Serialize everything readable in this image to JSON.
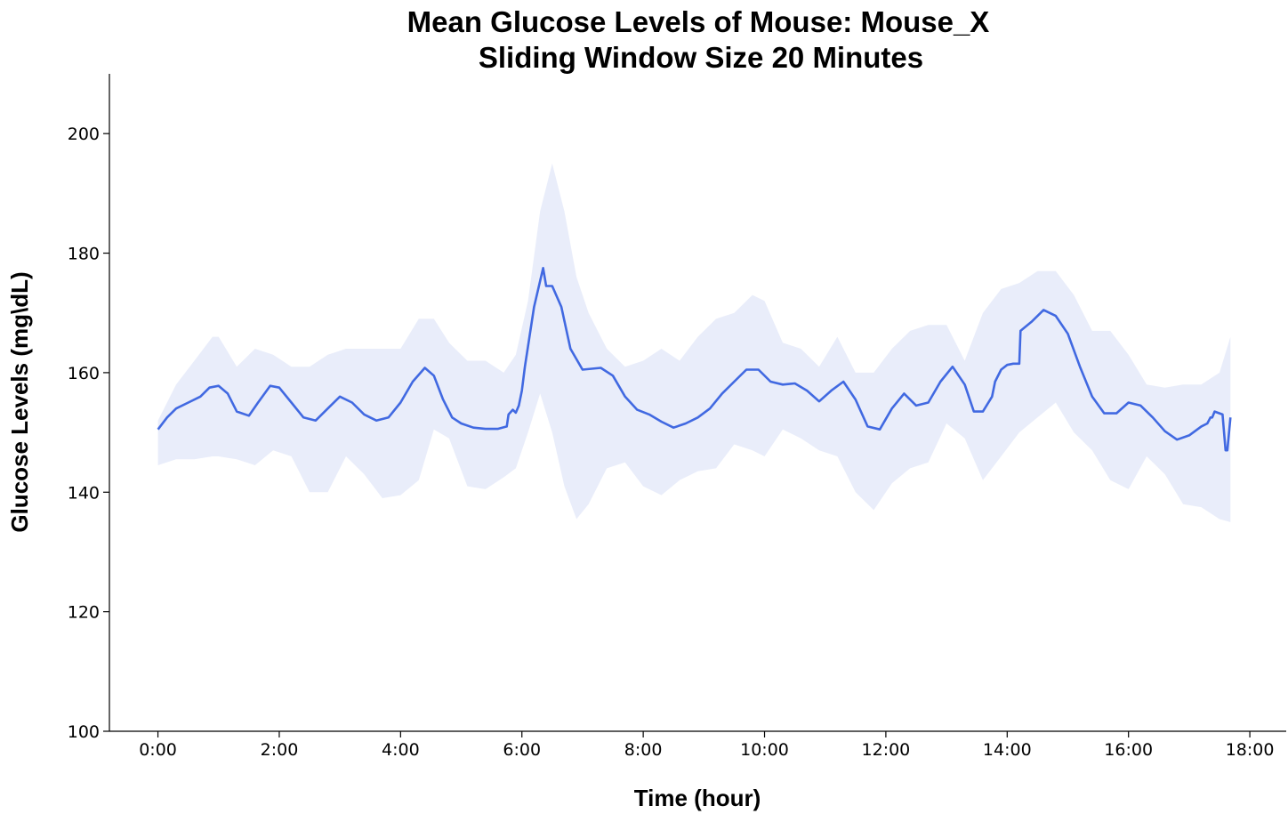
{
  "chart_data": {
    "type": "line",
    "title_line1": "Mean Glucose Levels of Mouse: Mouse_X",
    "title_line2": "Sliding Window Size 20 Minutes",
    "xlabel": "Time (hour)",
    "ylabel": "Glucose Levels (mg\\dL)",
    "xlim": [
      -0.8,
      18.6
    ],
    "ylim": [
      100,
      210
    ],
    "x_ticks": [
      0,
      2,
      4,
      6,
      8,
      10,
      12,
      14,
      16,
      18
    ],
    "x_tick_labels": [
      "0:00",
      "2:00",
      "4:00",
      "6:00",
      "8:00",
      "10:00",
      "12:00",
      "14:00",
      "16:00",
      "18:00"
    ],
    "y_ticks": [
      100,
      120,
      140,
      160,
      180,
      200
    ],
    "y_tick_labels": [
      "100",
      "120",
      "140",
      "160",
      "180",
      "200"
    ],
    "grid": false,
    "line_color": "#4169e1",
    "band_color": "#e9edfa",
    "series": [
      {
        "x": [
          0,
          0.15,
          0.3,
          0.5,
          0.7,
          0.85,
          1.0,
          1.15,
          1.3,
          1.5,
          1.65,
          1.85,
          2.0,
          2.2,
          2.4,
          2.6,
          2.8,
          3.0,
          3.2,
          3.4,
          3.6,
          3.8,
          4.0,
          4.2,
          4.4,
          4.55,
          4.7,
          4.85,
          5.0,
          5.2,
          5.4,
          5.6,
          5.75,
          5.78,
          5.85,
          5.9,
          5.95,
          6.0,
          6.05,
          6.2,
          6.35,
          6.4,
          6.5,
          6.65,
          6.8,
          7.0,
          7.3,
          7.5,
          7.7,
          7.9,
          8.1,
          8.3,
          8.5,
          8.7,
          8.9,
          9.1,
          9.3,
          9.5,
          9.7,
          9.9,
          10.1,
          10.3,
          10.5,
          10.7,
          10.9,
          11.1,
          11.3,
          11.5,
          11.7,
          11.9,
          12.1,
          12.3,
          12.5,
          12.7,
          12.9,
          13.1,
          13.3,
          13.45,
          13.6,
          13.75,
          13.8,
          13.9,
          14.0,
          14.1,
          14.2,
          14.22,
          14.4,
          14.6,
          14.8,
          15.0,
          15.2,
          15.4,
          15.6,
          15.8,
          16.0,
          16.2,
          16.4,
          16.6,
          16.8,
          17.0,
          17.2,
          17.3,
          17.35,
          17.38,
          17.42,
          17.55,
          17.6,
          17.63,
          17.68
        ],
        "mean": [
          150.5,
          152.5,
          154,
          155,
          156,
          157.5,
          157.8,
          156.5,
          153.5,
          152.8,
          155,
          157.8,
          157.5,
          155,
          152.5,
          152,
          154,
          156,
          155,
          153,
          152,
          152.5,
          155,
          158.5,
          160.8,
          159.5,
          155.5,
          152.5,
          151.5,
          150.8,
          150.6,
          150.6,
          151,
          153,
          153.8,
          153.3,
          154.5,
          157,
          161,
          171,
          177.5,
          174.5,
          174.5,
          171,
          164,
          160.5,
          160.8,
          159.5,
          156,
          153.8,
          153,
          151.8,
          150.8,
          151.5,
          152.5,
          154,
          156.5,
          158.5,
          160.5,
          160.5,
          158.5,
          158,
          158.2,
          157,
          155.2,
          157,
          158.5,
          155.5,
          151,
          150.5,
          154,
          156.5,
          154.5,
          155,
          158.5,
          161,
          158,
          153.5,
          153.5,
          156,
          158.5,
          160.5,
          161.3,
          161.5,
          161.5,
          167,
          168.5,
          170.5,
          169.5,
          166.5,
          161,
          156,
          153.2,
          153.2,
          155,
          154.5,
          152.5,
          150.2,
          148.8,
          149.5,
          151,
          151.5,
          152.5,
          152.5,
          153.5,
          153,
          147,
          147,
          152.5
        ]
      }
    ],
    "band": {
      "x": [
        0,
        0.3,
        0.6,
        0.9,
        1.0,
        1.3,
        1.6,
        1.9,
        2.2,
        2.5,
        2.8,
        3.1,
        3.4,
        3.7,
        4.0,
        4.3,
        4.55,
        4.8,
        5.1,
        5.4,
        5.7,
        5.9,
        6.1,
        6.3,
        6.5,
        6.7,
        6.9,
        7.1,
        7.4,
        7.7,
        8.0,
        8.3,
        8.6,
        8.9,
        9.2,
        9.5,
        9.8,
        10.0,
        10.3,
        10.6,
        10.9,
        11.2,
        11.5,
        11.8,
        12.1,
        12.4,
        12.7,
        13.0,
        13.3,
        13.6,
        13.9,
        14.2,
        14.5,
        14.8,
        15.1,
        15.4,
        15.7,
        16.0,
        16.3,
        16.6,
        16.9,
        17.2,
        17.5,
        17.68
      ],
      "upper": [
        152,
        158,
        162,
        166,
        166,
        161,
        164,
        163,
        161,
        161,
        163,
        164,
        164,
        164,
        164,
        169,
        169,
        165,
        162,
        162,
        160,
        163,
        172,
        187,
        195,
        187,
        176,
        170,
        164,
        161,
        162,
        164,
        162,
        166,
        169,
        170,
        173,
        172,
        165,
        164,
        161,
        166,
        160,
        160,
        164,
        167,
        168,
        168,
        162,
        170,
        174,
        175,
        177,
        177,
        173,
        167,
        167,
        163,
        158,
        157.5,
        158,
        158,
        160,
        166
      ],
      "lower": [
        144.5,
        145.5,
        145.5,
        146,
        146,
        145.5,
        144.5,
        147,
        146,
        140,
        140,
        146,
        143,
        139,
        139.5,
        142,
        150.5,
        149,
        141,
        140.5,
        142.5,
        144,
        150,
        156.5,
        150,
        141,
        135.5,
        138,
        144,
        145,
        141,
        139.5,
        142,
        143.5,
        144,
        148,
        147,
        146,
        150.5,
        149,
        147,
        146,
        140,
        137,
        141.5,
        144,
        145,
        151.5,
        149,
        142,
        146,
        150,
        152.5,
        155,
        150,
        147,
        142,
        140.5,
        146,
        143,
        138,
        137.5,
        135.5,
        135
      ]
    }
  }
}
